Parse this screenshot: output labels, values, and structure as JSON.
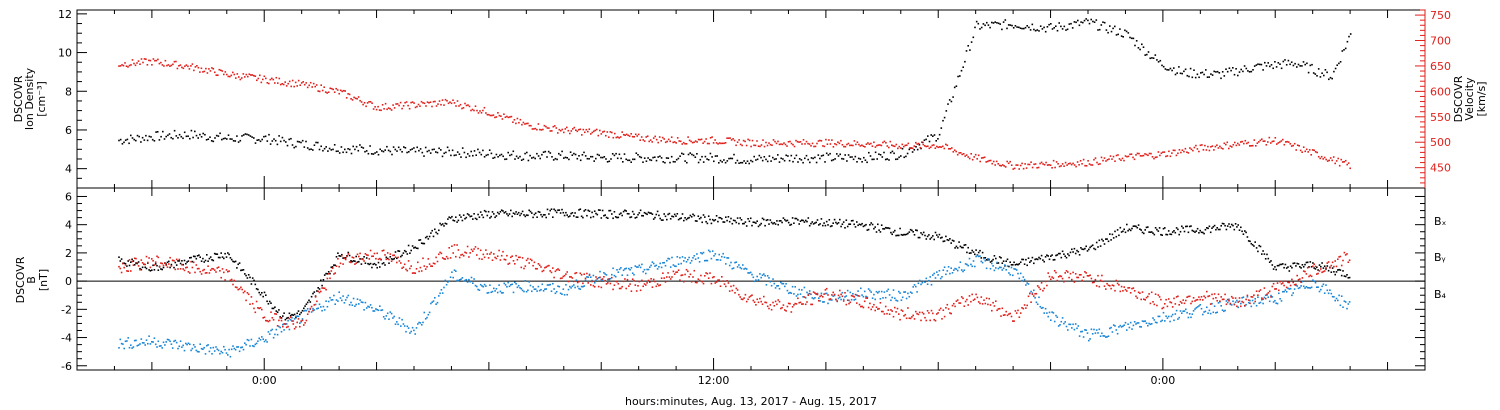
{
  "colors": {
    "density": "#000000",
    "velocity": "#e0201b",
    "bx": "#000000",
    "by": "#1a86d6",
    "bz": "#e0201b",
    "axis": "#000000",
    "velocity_axis": "#e0201b"
  },
  "chart_data": [
    {
      "type": "scatter",
      "panel": "top",
      "ylabel_left": [
        "DSCOVR",
        "Ion Density",
        "[cm⁻³]"
      ],
      "ylabel_right": [
        "DSCOVR",
        "Velocity",
        "[km/s]"
      ],
      "ylim_left": [
        3,
        12.2
      ],
      "ylim_right": [
        410,
        760
      ],
      "yticks_left": [
        "4",
        "6",
        "8",
        "10",
        "12"
      ],
      "yticks_right": [
        "450",
        "500",
        "550",
        "600",
        "650",
        "700",
        "750"
      ],
      "series": [
        {
          "name": "",
          "axis": "left",
          "color_key": "density",
          "x": [
            -3.9,
            -3,
            -2,
            -1,
            0,
            1,
            2,
            3,
            4,
            5,
            6,
            7,
            8,
            9,
            10,
            11,
            12,
            13,
            14,
            15,
            16,
            16.5,
            17,
            18,
            19,
            20,
            21,
            22,
            23,
            23.9,
            24.5,
            25.5,
            26.5,
            27.5,
            28.5,
            29
          ],
          "y": [
            5.5,
            5.7,
            5.8,
            5.6,
            5.6,
            5.3,
            5.1,
            5,
            4.9,
            4.9,
            4.8,
            4.7,
            4.7,
            4.6,
            4.6,
            4.6,
            4.6,
            4.5,
            4.6,
            4.6,
            4.6,
            4.7,
            4.8,
            5.8,
            11.4,
            11.5,
            11.3,
            11.6,
            11,
            9.5,
            9.0,
            8.9,
            9.3,
            9.5,
            8.8,
            11
          ]
        },
        {
          "name": "",
          "axis": "right",
          "color_key": "velocity",
          "x": [
            -3.9,
            -3,
            -2,
            -1,
            0,
            1,
            2,
            3,
            4,
            5,
            6,
            7,
            8,
            9,
            10,
            11,
            12,
            13,
            14,
            15,
            16,
            17,
            18,
            19,
            20,
            21,
            22,
            23,
            24,
            25,
            26,
            27,
            28,
            29
          ],
          "y": [
            655,
            660,
            650,
            635,
            625,
            615,
            600,
            570,
            575,
            580,
            560,
            535,
            525,
            520,
            510,
            505,
            505,
            500,
            500,
            500,
            498,
            495,
            495,
            470,
            455,
            458,
            462,
            472,
            478,
            490,
            498,
            505,
            480,
            455
          ]
        }
      ]
    },
    {
      "type": "scatter",
      "panel": "bottom",
      "ylabel_left": [
        "DSCOVR",
        "B",
        "[nT]"
      ],
      "ylim": [
        -6.3,
        6.6
      ],
      "yticks": [
        "-6",
        "-4",
        "-2",
        "0",
        "2",
        "4",
        "6"
      ],
      "zero_line": true,
      "legend": [
        "Bₓ",
        "Bᵧ",
        "B₄"
      ],
      "legend_placement": "right",
      "xlabel": "hours:minutes, Aug. 13, 2017 - Aug. 15, 2017",
      "xticks": [
        "0:00",
        "12:00",
        "0:00"
      ],
      "xlim": [
        -5,
        31
      ],
      "series": [
        {
          "name": "Bₓ",
          "color_key": "bx",
          "x": [
            -3.9,
            -3,
            -2,
            -1,
            0,
            0.5,
            1,
            2,
            3,
            4,
            5,
            6,
            7,
            8,
            9,
            10,
            11,
            12,
            13,
            14,
            15,
            16,
            17,
            18,
            19,
            20,
            21,
            22,
            23,
            24,
            25,
            26,
            27,
            28,
            29
          ],
          "y": [
            1.5,
            1.0,
            1.5,
            2.0,
            -1,
            -2.5,
            -2.2,
            2,
            1.2,
            2.5,
            4.5,
            4.8,
            4.8,
            4.9,
            4.8,
            4.8,
            4.6,
            4.4,
            4.2,
            4.3,
            4.2,
            4.0,
            3.5,
            3.2,
            2.0,
            1.2,
            1.8,
            2.3,
            3.8,
            3.6,
            3.7,
            4.0,
            1.0,
            1.2,
            0.5
          ]
        },
        {
          "name": "Bᵧ",
          "color_key": "by",
          "x": [
            -3.9,
            -3,
            -2,
            -1,
            0,
            1,
            2,
            3,
            4,
            5,
            6,
            7,
            8,
            9,
            10,
            11,
            12,
            13,
            14,
            15,
            16,
            17,
            18,
            19,
            20,
            21,
            22,
            23,
            24,
            25,
            26,
            27,
            28,
            29
          ],
          "y": [
            -4.4,
            -4.2,
            -4.6,
            -5.0,
            -4.0,
            -2.5,
            -1.0,
            -2.0,
            -3.5,
            0.5,
            -0.5,
            -0.3,
            -0.6,
            0.5,
            0.8,
            1.5,
            2.0,
            0.5,
            -0.5,
            -1.2,
            -0.8,
            -1.0,
            0.5,
            1.5,
            0.8,
            -2.5,
            -3.8,
            -3.2,
            -2.5,
            -2.0,
            -1.5,
            -1.2,
            0,
            -1.8
          ]
        },
        {
          "name": "B₄",
          "color_key": "bz",
          "x": [
            -3.9,
            -3,
            -2,
            -1,
            0,
            1,
            2,
            3,
            4,
            5,
            6,
            7,
            8,
            9,
            10,
            11,
            12,
            13,
            14,
            15,
            16,
            17,
            18,
            19,
            20,
            21,
            22,
            23,
            24,
            25,
            26,
            27,
            28,
            29
          ],
          "y": [
            1.0,
            1.5,
            1.0,
            0.5,
            -2.5,
            -3.0,
            1.5,
            2.0,
            1.0,
            2.2,
            2.0,
            1.3,
            0.5,
            0,
            -0.3,
            0.5,
            0.2,
            -1.2,
            -1.8,
            -0.8,
            -1.5,
            -2.3,
            -2.3,
            -1.0,
            -2.5,
            0.5,
            0.3,
            -0.5,
            -1.5,
            -1.0,
            -1.5,
            -0.5,
            0.8,
            1.8
          ]
        }
      ]
    }
  ]
}
